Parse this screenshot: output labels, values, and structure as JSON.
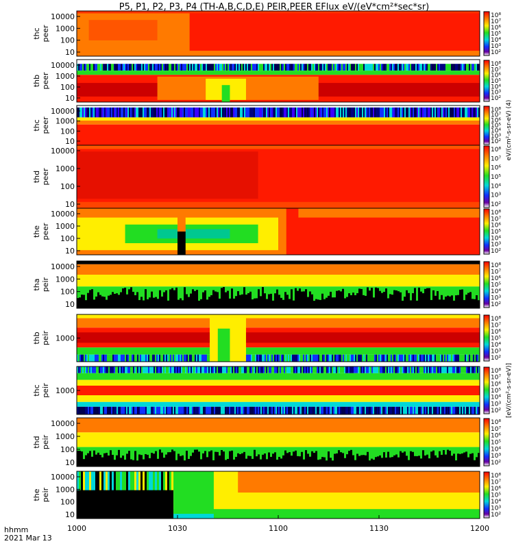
{
  "chart_data": {
    "type": "heatmap",
    "title": "P5, P1, P2, P3, P4 (TH-A,B,C,D,E) PEIR,PEER EFlux eV/(eV*cm²*sec*sr)",
    "x_ticks": [
      "1000",
      "1030",
      "1100",
      "1130",
      "1200"
    ],
    "x_range_hhmm": [
      "1000",
      "1200"
    ],
    "x_label_line1": "hhmm",
    "x_label_line2": "2021 Mar 13",
    "y_scale": "log",
    "colorbar_scale": "log",
    "colorbar_ticks": [
      "10⁸",
      "10⁷",
      "10⁶",
      "10⁵",
      "10⁴",
      "10³",
      "10²"
    ],
    "colorbar_label_peer": "eV/(cm²-s-sr-eV) (4)",
    "colorbar_label_peir": "[eV/(cm²-s-sr-eV)]",
    "panels": [
      {
        "name": "thc peer",
        "probe": "thc",
        "species": "peer",
        "y_ticks": [
          "10000",
          "1000",
          "100",
          "10"
        ]
      },
      {
        "name": "thb peer",
        "probe": "thb",
        "species": "peer",
        "y_ticks": [
          "10000",
          "1000",
          "100",
          "10"
        ]
      },
      {
        "name": "thc peer",
        "probe": "thc",
        "species": "peer",
        "y_ticks": [
          "10000",
          "1000",
          "100",
          "10"
        ]
      },
      {
        "name": "thd peer",
        "probe": "thd",
        "species": "peer",
        "y_ticks": [
          "10000",
          "1000",
          "100",
          "10"
        ]
      },
      {
        "name": "the peer",
        "probe": "the",
        "species": "peer",
        "y_ticks": [
          "10000",
          "1000",
          "100",
          "10"
        ]
      },
      {
        "name": "tha peir",
        "probe": "tha",
        "species": "peir",
        "y_ticks": [
          "10000",
          "1000",
          "100",
          "10"
        ]
      },
      {
        "name": "thb peir",
        "probe": "thb",
        "species": "peir",
        "y_ticks": [
          "1000"
        ]
      },
      {
        "name": "thc peir",
        "probe": "thc",
        "species": "peir",
        "y_ticks": [
          "1000"
        ]
      },
      {
        "name": "thd peir",
        "probe": "thd",
        "species": "peir",
        "y_ticks": [
          "10000",
          "1000",
          "100",
          "10"
        ]
      },
      {
        "name": "the peir",
        "probe": "the",
        "species": "peir",
        "y_ticks": [
          "10000",
          "1000",
          "100",
          "10"
        ]
      }
    ],
    "colors": {
      "red": "#ff1a00",
      "dark_red": "#cc0000",
      "orange": "#ff7a00",
      "yellow": "#ffee00",
      "green": "#22dd22",
      "cyan": "#00d8d8",
      "blue": "#1030ff",
      "navy": "#000080",
      "black": "#000000"
    }
  }
}
